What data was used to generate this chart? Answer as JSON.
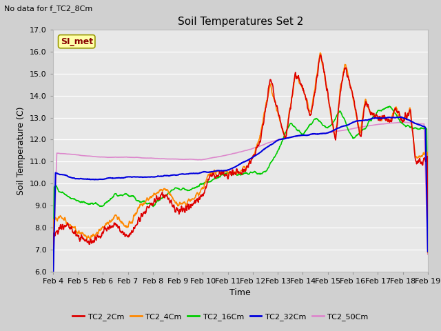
{
  "title": "Soil Temperatures Set 2",
  "xlabel": "Time",
  "ylabel": "Soil Temperature (C)",
  "annotation": "No data for f_TC2_8Cm",
  "watermark": "SI_met",
  "ylim": [
    6.0,
    17.0
  ],
  "yticks": [
    6.0,
    7.0,
    8.0,
    9.0,
    10.0,
    11.0,
    12.0,
    13.0,
    14.0,
    15.0,
    16.0,
    17.0
  ],
  "xtick_labels": [
    "Feb 4",
    "Feb 5",
    "Feb 6",
    "Feb 7",
    "Feb 8",
    "Feb 9",
    "Feb 10",
    "Feb 11",
    "Feb 12",
    "Feb 13",
    "Feb 14",
    "Feb 15",
    "Feb 16",
    "Feb 17",
    "Feb 18",
    "Feb 19"
  ],
  "series": {
    "TC2_2Cm": {
      "color": "#dd0000",
      "lw": 1.2
    },
    "TC2_4Cm": {
      "color": "#ff8800",
      "lw": 1.2
    },
    "TC2_16Cm": {
      "color": "#00cc00",
      "lw": 1.2
    },
    "TC2_32Cm": {
      "color": "#0000dd",
      "lw": 1.5
    },
    "TC2_50Cm": {
      "color": "#dd88cc",
      "lw": 1.2
    }
  },
  "fig_bg": "#d0d0d0",
  "plot_bg": "#e8e8e8",
  "grid_color": "#ffffff",
  "annotation_fontsize": 8,
  "title_fontsize": 11,
  "axis_fontsize": 8,
  "tick_fontsize": 8
}
